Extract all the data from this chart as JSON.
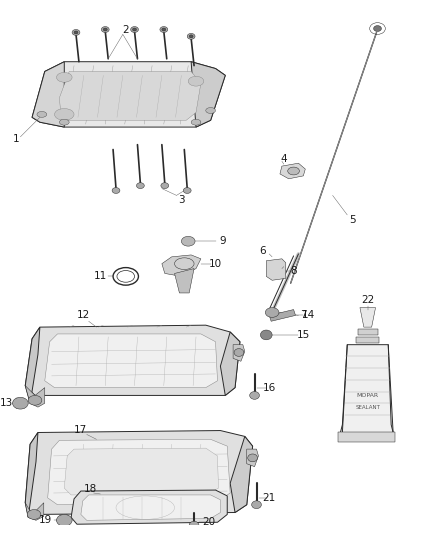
{
  "background_color": "#ffffff",
  "line_color": "#2a2a2a",
  "label_fontsize": 7.5,
  "label_color": "#1a1a1a",
  "lw_main": 0.7,
  "lw_thin": 0.35,
  "lw_detail": 0.25
}
